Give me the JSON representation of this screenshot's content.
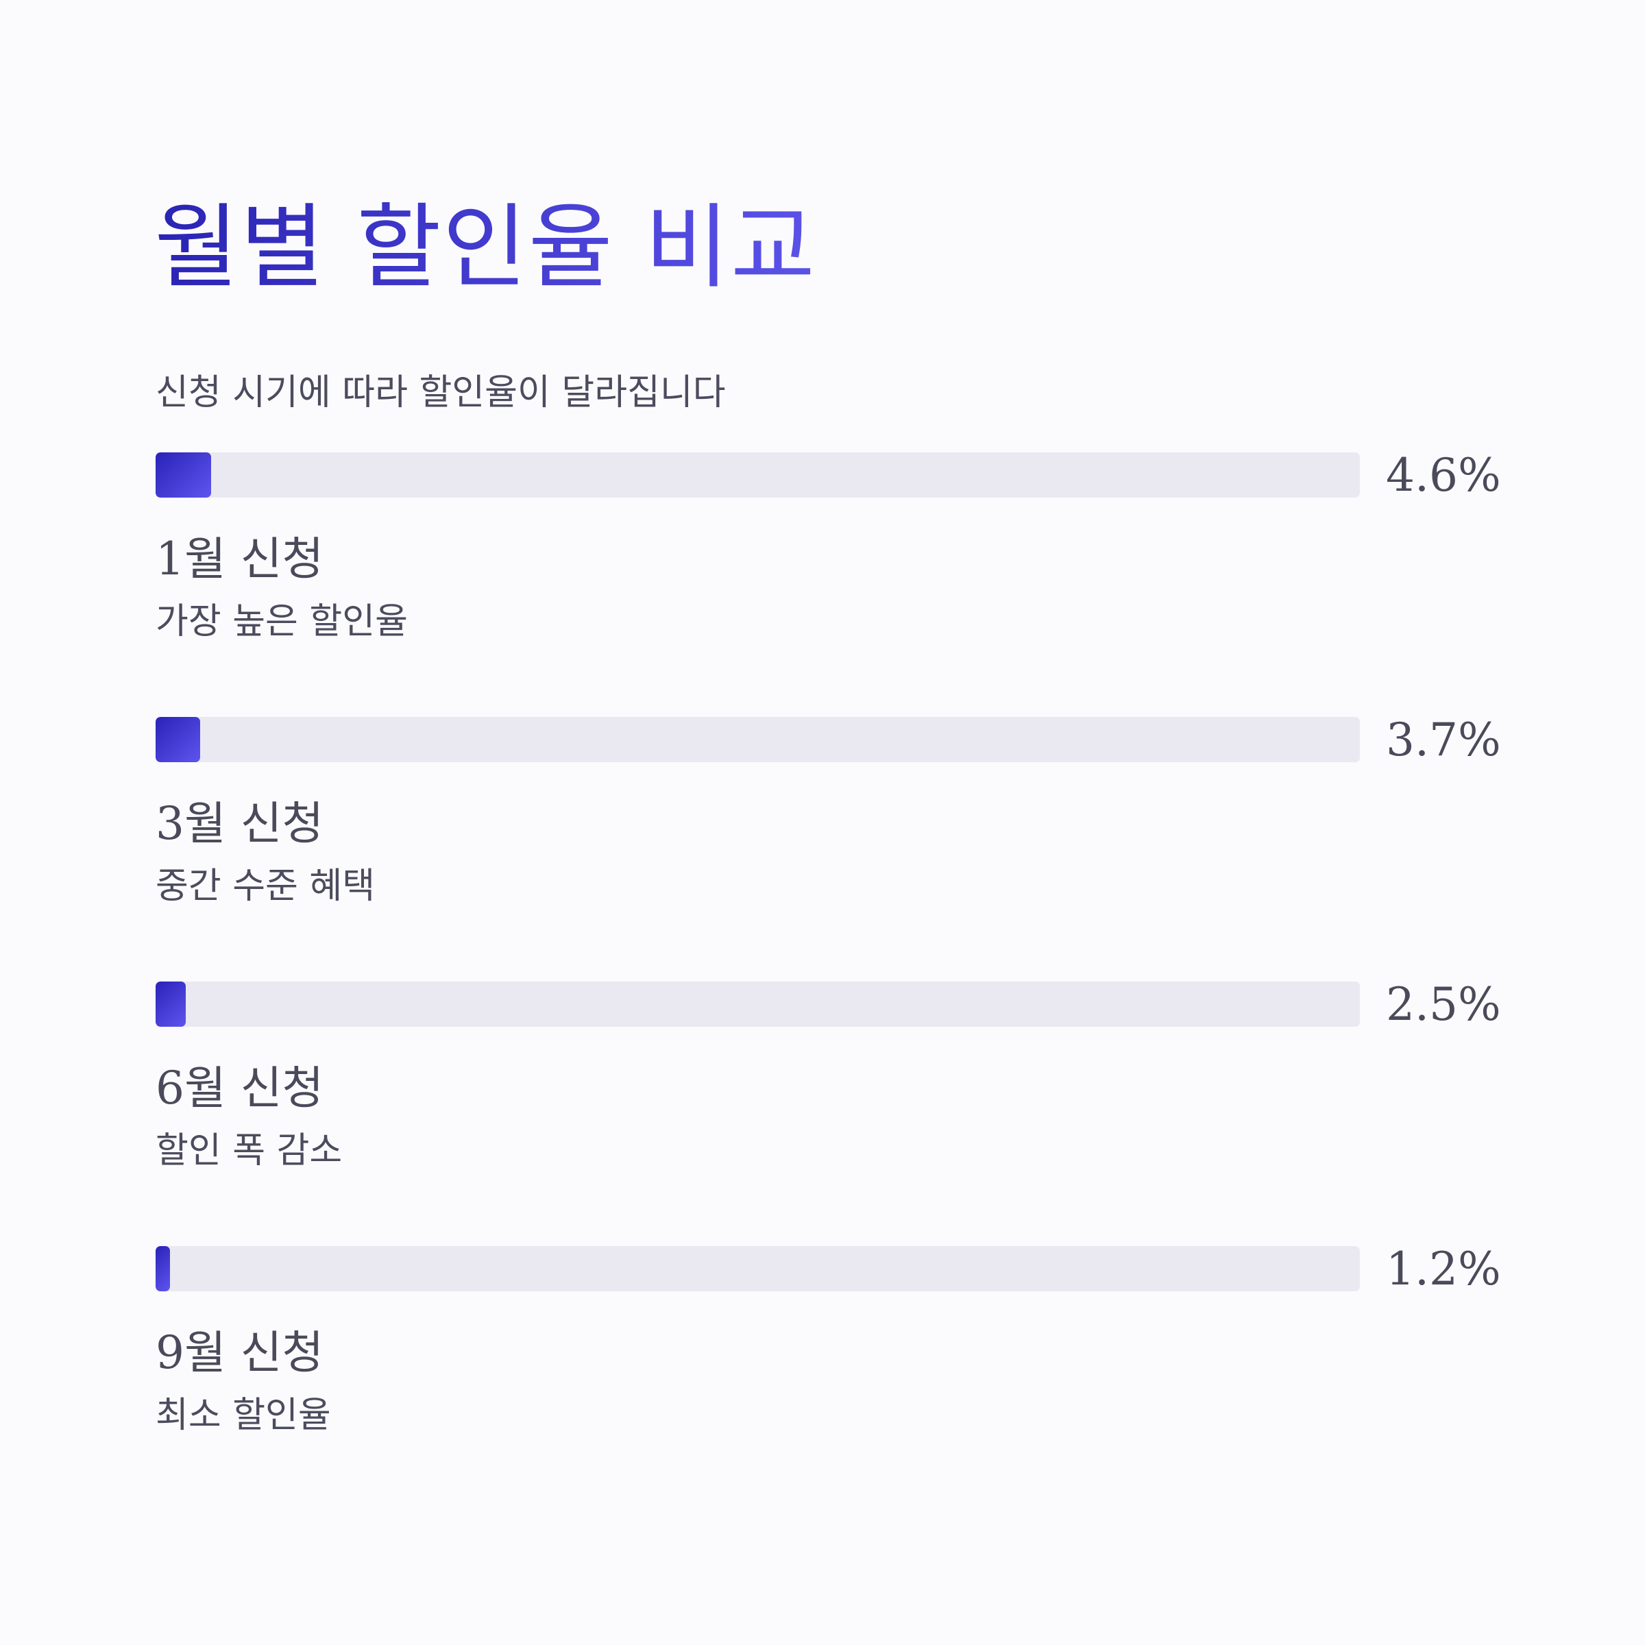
{
  "chart_data": {
    "type": "bar",
    "orientation": "horizontal",
    "title": "월별 할인율 비교",
    "subtitle": "신청 시기에 따라 할인율이 달라집니다",
    "categories": [
      "1월 신청",
      "3월 신청",
      "6월 신청",
      "9월 신청"
    ],
    "values": [
      4.6,
      3.7,
      2.5,
      1.2
    ],
    "value_labels": [
      "4.6%",
      "3.7%",
      "2.5%",
      "1.2%"
    ],
    "descriptions": [
      "가장 높은 할인율",
      "중간 수준 혜택",
      "할인 폭 감소",
      "최소 할인율"
    ],
    "unit": "%",
    "xlim": [
      0,
      100
    ],
    "grid": false,
    "colors": {
      "bar_start": "#2a22b8",
      "bar_end": "#5d55ee",
      "track": "#eae9f2",
      "title_start": "#2a24b4",
      "title_end": "#5b52e8",
      "text": "#4a4a5a"
    }
  }
}
